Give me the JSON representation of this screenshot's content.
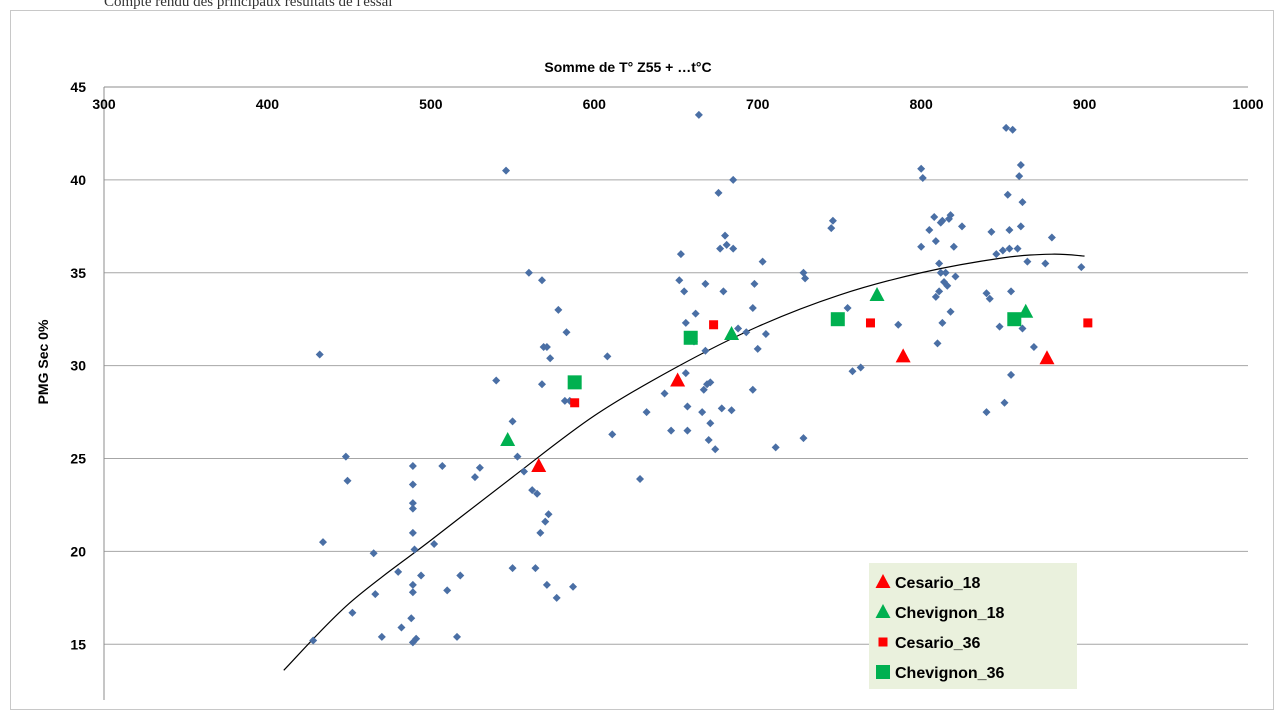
{
  "caption": "Compte rendu des principaux résultats de l'essai",
  "chart_data": {
    "type": "scatter",
    "title": "",
    "xlabel": "Somme de T° Z55 + …t°C",
    "ylabel": "PMG Sec 0%",
    "xlim": [
      300,
      1000
    ],
    "ylim": [
      12,
      45
    ],
    "x_ticks": [
      "300",
      "400",
      "500",
      "600",
      "700",
      "800",
      "900",
      "1000"
    ],
    "y_ticks": [
      "15",
      "20",
      "25",
      "30",
      "35",
      "40",
      "45"
    ],
    "x_axis_position": "top",
    "grid": "horizontal",
    "legend_position": "bottom-right",
    "trendline": {
      "type": "polynomial",
      "points": [
        [
          410,
          13.6
        ],
        [
          450,
          17.2
        ],
        [
          500,
          20.6
        ],
        [
          550,
          24.0
        ],
        [
          600,
          27.3
        ],
        [
          650,
          29.9
        ],
        [
          700,
          32.1
        ],
        [
          750,
          33.8
        ],
        [
          800,
          35.0
        ],
        [
          850,
          35.8
        ],
        [
          880,
          36.0
        ],
        [
          900,
          35.9
        ]
      ]
    },
    "series": [
      {
        "name": "",
        "marker": "diamond",
        "color": "#4a6fa5",
        "points": [
          [
            432,
            30.6
          ],
          [
            428,
            15.2
          ],
          [
            434,
            20.5
          ],
          [
            448,
            25.1
          ],
          [
            449,
            23.8
          ],
          [
            452,
            16.7
          ],
          [
            465,
            19.9
          ],
          [
            466,
            17.7
          ],
          [
            470,
            15.4
          ],
          [
            480,
            18.9
          ],
          [
            482,
            15.9
          ],
          [
            488,
            16.4
          ],
          [
            489,
            15.1
          ],
          [
            489,
            17.8
          ],
          [
            489,
            18.2
          ],
          [
            489,
            21.0
          ],
          [
            489,
            22.3
          ],
          [
            489,
            22.6
          ],
          [
            489,
            23.6
          ],
          [
            489,
            24.6
          ],
          [
            490,
            20.1
          ],
          [
            491,
            15.3
          ],
          [
            494,
            18.7
          ],
          [
            502,
            20.4
          ],
          [
            507,
            24.6
          ],
          [
            510,
            17.9
          ],
          [
            516,
            15.4
          ],
          [
            518,
            18.7
          ],
          [
            527,
            24.0
          ],
          [
            530,
            24.5
          ],
          [
            540,
            29.2
          ],
          [
            546,
            40.5
          ],
          [
            550,
            27.0
          ],
          [
            550,
            19.1
          ],
          [
            553,
            25.1
          ],
          [
            557,
            24.3
          ],
          [
            560,
            35.0
          ],
          [
            562,
            23.3
          ],
          [
            564,
            19.1
          ],
          [
            565,
            23.1
          ],
          [
            568,
            34.6
          ],
          [
            567,
            21.0
          ],
          [
            568,
            29.0
          ],
          [
            569,
            31.0
          ],
          [
            570,
            21.6
          ],
          [
            571,
            18.2
          ],
          [
            572,
            22.0
          ],
          [
            571,
            31.0
          ],
          [
            573,
            30.4
          ],
          [
            577,
            17.5
          ],
          [
            578,
            33.0
          ],
          [
            582,
            28.1
          ],
          [
            583,
            31.8
          ],
          [
            585,
            28.1
          ],
          [
            587,
            18.1
          ],
          [
            608,
            30.5
          ],
          [
            611,
            26.3
          ],
          [
            628,
            23.9
          ],
          [
            632,
            27.5
          ],
          [
            643,
            28.5
          ],
          [
            647,
            26.5
          ],
          [
            653,
            36.0
          ],
          [
            652,
            34.6
          ],
          [
            655,
            34.0
          ],
          [
            656,
            32.3
          ],
          [
            657,
            26.5
          ],
          [
            657,
            27.8
          ],
          [
            656,
            29.6
          ],
          [
            661,
            31.3
          ],
          [
            662,
            32.8
          ],
          [
            664,
            43.5
          ],
          [
            666,
            27.5
          ],
          [
            667,
            28.7
          ],
          [
            669,
            29.0
          ],
          [
            668,
            30.8
          ],
          [
            668,
            34.4
          ],
          [
            670,
            26.0
          ],
          [
            671,
            29.1
          ],
          [
            671,
            26.9
          ],
          [
            674,
            25.5
          ],
          [
            676,
            39.3
          ],
          [
            677,
            36.3
          ],
          [
            678,
            27.7
          ],
          [
            679,
            34.0
          ],
          [
            680,
            37.0
          ],
          [
            681,
            36.5
          ],
          [
            685,
            40.0
          ],
          [
            685,
            36.3
          ],
          [
            684,
            27.6
          ],
          [
            688,
            32.0
          ],
          [
            693,
            31.8
          ],
          [
            697,
            33.1
          ],
          [
            697,
            28.7
          ],
          [
            698,
            34.4
          ],
          [
            700,
            30.9
          ],
          [
            703,
            35.6
          ],
          [
            705,
            31.7
          ],
          [
            711,
            25.6
          ],
          [
            728,
            26.1
          ],
          [
            728,
            35.0
          ],
          [
            729,
            34.7
          ],
          [
            745,
            37.4
          ],
          [
            746,
            37.8
          ],
          [
            755,
            33.1
          ],
          [
            758,
            29.7
          ],
          [
            763,
            29.9
          ],
          [
            786,
            32.2
          ],
          [
            800,
            36.4
          ],
          [
            800,
            40.6
          ],
          [
            801,
            40.1
          ],
          [
            805,
            37.3
          ],
          [
            808,
            38.0
          ],
          [
            809,
            36.7
          ],
          [
            809,
            33.7
          ],
          [
            810,
            31.2
          ],
          [
            811,
            35.5
          ],
          [
            811,
            34.0
          ],
          [
            812,
            37.7
          ],
          [
            812,
            35.0
          ],
          [
            813,
            32.3
          ],
          [
            813,
            37.8
          ],
          [
            814,
            34.5
          ],
          [
            815,
            35.0
          ],
          [
            816,
            34.3
          ],
          [
            817,
            37.9
          ],
          [
            818,
            38.1
          ],
          [
            818,
            32.9
          ],
          [
            820,
            36.4
          ],
          [
            821,
            34.8
          ],
          [
            825,
            37.5
          ],
          [
            840,
            33.9
          ],
          [
            840,
            27.5
          ],
          [
            842,
            33.6
          ],
          [
            843,
            37.2
          ],
          [
            846,
            36.0
          ],
          [
            848,
            32.1
          ],
          [
            850,
            36.2
          ],
          [
            851,
            28.0
          ],
          [
            852,
            42.8
          ],
          [
            853,
            39.2
          ],
          [
            854,
            36.3
          ],
          [
            854,
            37.3
          ],
          [
            855,
            29.5
          ],
          [
            855,
            34.0
          ],
          [
            856,
            42.7
          ],
          [
            859,
            36.3
          ],
          [
            860,
            40.2
          ],
          [
            861,
            37.5
          ],
          [
            861,
            40.8
          ],
          [
            862,
            38.8
          ],
          [
            862,
            32.0
          ],
          [
            865,
            35.6
          ],
          [
            869,
            31.0
          ],
          [
            876,
            35.5
          ],
          [
            880,
            36.9
          ],
          [
            898,
            35.3
          ]
        ]
      },
      {
        "name": "Cesario_18",
        "marker": "triangle",
        "color": "#ff0000",
        "points": [
          [
            566,
            24.6
          ],
          [
            651,
            29.2
          ],
          [
            789,
            30.5
          ],
          [
            877,
            30.4
          ]
        ]
      },
      {
        "name": "Chevignon_18",
        "marker": "triangle",
        "color": "#00b050",
        "points": [
          [
            547,
            26.0
          ],
          [
            684,
            31.7
          ],
          [
            773,
            33.8
          ],
          [
            864,
            32.9
          ]
        ]
      },
      {
        "name": "Cesario_36",
        "marker": "square-small",
        "color": "#ff0000",
        "points": [
          [
            588,
            28.0
          ],
          [
            673,
            32.2
          ],
          [
            769,
            32.3
          ],
          [
            902,
            32.3
          ]
        ]
      },
      {
        "name": "Chevignon_36",
        "marker": "square",
        "color": "#00b050",
        "points": [
          [
            588,
            29.1
          ],
          [
            659,
            31.5
          ],
          [
            749,
            32.5
          ],
          [
            857,
            32.5
          ]
        ]
      }
    ],
    "legend": {
      "background": "#eaf1dd",
      "entries": [
        {
          "label": "Cesario_18",
          "marker": "triangle",
          "color": "#ff0000"
        },
        {
          "label": "Chevignon_18",
          "marker": "triangle",
          "color": "#00b050"
        },
        {
          "label": "Cesario_36",
          "marker": "square-small",
          "color": "#ff0000"
        },
        {
          "label": "Chevignon_36",
          "marker": "square",
          "color": "#00b050"
        }
      ]
    },
    "gridline_color": "#a6a6a6"
  }
}
